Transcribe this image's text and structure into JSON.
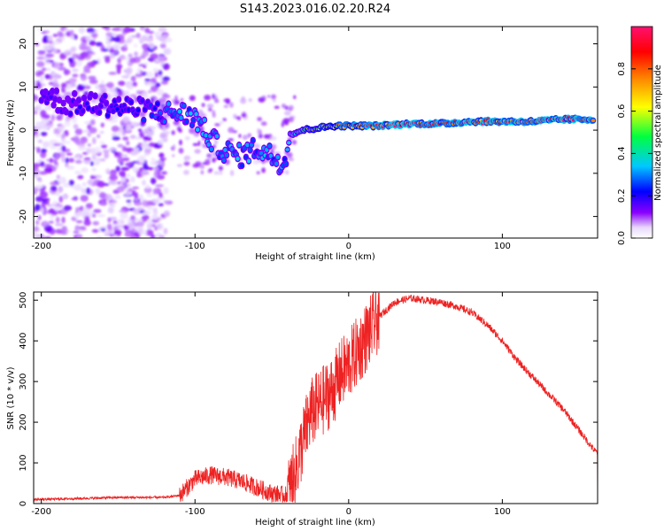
{
  "title": "S143.2023.016.02.20.R24",
  "chart_data": [
    {
      "type": "heatmap",
      "xlabel": "Height of straight line (km)",
      "ylabel": "Frequency (Hz)",
      "xlim": [
        -205,
        162
      ],
      "ylim": [
        -25,
        24
      ],
      "xticks": [
        -200,
        -100,
        0,
        100
      ],
      "yticks": [
        -20,
        -10,
        0,
        10,
        20
      ],
      "colorbar": {
        "label": "Normalized spectral amplitude",
        "range": [
          0,
          1
        ],
        "ticks": [
          "0.0",
          "0.2",
          "0.4",
          "0.6",
          "0.8"
        ],
        "colors": [
          "#ffffff",
          "#7f00ff",
          "#0000ff",
          "#00c8ff",
          "#00ff00",
          "#ffff00",
          "#ff7f00",
          "#ff0000",
          "#ff0080"
        ]
      },
      "noise_region_x": [
        -205,
        -117
      ],
      "trace": [
        {
          "x": -200,
          "y": 9,
          "amp": 0.15
        },
        {
          "x": -185,
          "y": 6,
          "amp": 0.15
        },
        {
          "x": -160,
          "y": 6,
          "amp": 0.2
        },
        {
          "x": -140,
          "y": 5,
          "amp": 0.2
        },
        {
          "x": -120,
          "y": 4,
          "amp": 0.25
        },
        {
          "x": -110,
          "y": 4,
          "amp": 0.3
        },
        {
          "x": -100,
          "y": 3,
          "amp": 0.3
        },
        {
          "x": -90,
          "y": -2,
          "amp": 0.3
        },
        {
          "x": -80,
          "y": -5,
          "amp": 0.3
        },
        {
          "x": -70,
          "y": -6,
          "amp": 0.3
        },
        {
          "x": -60,
          "y": -4,
          "amp": 0.3
        },
        {
          "x": -50,
          "y": -6,
          "amp": 0.3
        },
        {
          "x": -42,
          "y": -8,
          "amp": 0.3
        },
        {
          "x": -38,
          "y": -1,
          "amp": 0.4
        },
        {
          "x": -30,
          "y": 0,
          "amp": 0.5
        },
        {
          "x": -20,
          "y": 0.5,
          "amp": 0.6
        },
        {
          "x": -10,
          "y": 1,
          "amp": 0.7
        },
        {
          "x": 0,
          "y": 1,
          "amp": 0.8
        },
        {
          "x": 20,
          "y": 1,
          "amp": 0.9
        },
        {
          "x": 40,
          "y": 1.5,
          "amp": 0.9
        },
        {
          "x": 60,
          "y": 1.5,
          "amp": 0.9
        },
        {
          "x": 80,
          "y": 2,
          "amp": 0.9
        },
        {
          "x": 100,
          "y": 2,
          "amp": 0.9
        },
        {
          "x": 120,
          "y": 2,
          "amp": 0.9
        },
        {
          "x": 140,
          "y": 2.5,
          "amp": 0.9
        },
        {
          "x": 160,
          "y": 2.5,
          "amp": 0.9
        }
      ]
    },
    {
      "type": "line",
      "xlabel": "Height of straight line (km)",
      "ylabel": "SNR (10 * v/v)",
      "xlim": [
        -205,
        162
      ],
      "ylim": [
        0,
        520
      ],
      "xticks": [
        -200,
        -100,
        0,
        100
      ],
      "yticks": [
        0,
        100,
        200,
        300,
        400,
        500
      ],
      "color": "#ee2222",
      "series": [
        {
          "x": [
            -205,
            -180,
            -150,
            -120,
            -110,
            -100,
            -90,
            -80,
            -70,
            -60,
            -50,
            -40,
            -35,
            -30,
            -25,
            -20,
            -15,
            -10,
            -5,
            0,
            10,
            20,
            30,
            40,
            50,
            60,
            70,
            80,
            90,
            100,
            110,
            120,
            130,
            140,
            150,
            158,
            160,
            162
          ],
          "y": [
            10,
            12,
            15,
            15,
            20,
            60,
            70,
            65,
            55,
            40,
            25,
            20,
            70,
            150,
            220,
            240,
            260,
            280,
            320,
            340,
            400,
            460,
            495,
            505,
            500,
            495,
            485,
            470,
            440,
            400,
            350,
            310,
            270,
            230,
            180,
            140,
            130,
            125
          ]
        }
      ]
    }
  ]
}
